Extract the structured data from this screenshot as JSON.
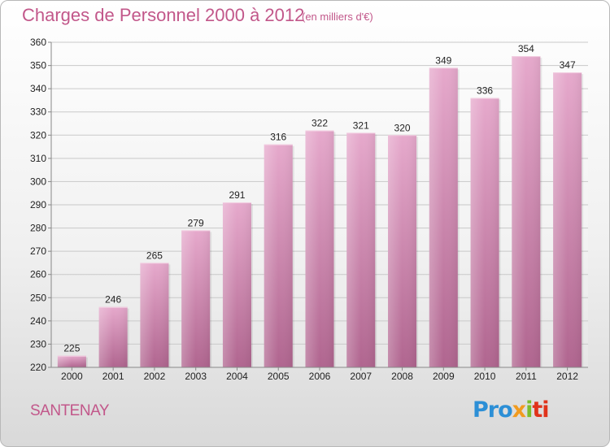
{
  "header": {
    "title": "Charges de Personnel 2000 à 2012",
    "unit": "(en milliers d'€)"
  },
  "footer": {
    "commune": "SANTENAY",
    "logo_parts": [
      "Pro",
      "x",
      "i",
      "ti"
    ]
  },
  "colors": {
    "title": "#c2578a",
    "bar_top": "#e6a9cc",
    "bar_bottom": "#b0658f"
  },
  "chart_data": {
    "type": "bar",
    "title": "Charges de Personnel 2000 à 2012",
    "subtitle": "(en milliers d'€)",
    "categories": [
      "2000",
      "2001",
      "2002",
      "2003",
      "2004",
      "2005",
      "2006",
      "2007",
      "2008",
      "2009",
      "2010",
      "2011",
      "2012"
    ],
    "values": [
      225,
      246,
      265,
      279,
      291,
      316,
      322,
      321,
      320,
      349,
      336,
      354,
      347
    ],
    "ylim": [
      220,
      360
    ],
    "yticks": [
      220,
      230,
      240,
      250,
      260,
      270,
      280,
      290,
      300,
      310,
      320,
      330,
      340,
      350,
      360
    ],
    "grid": true,
    "data_labels": true
  }
}
